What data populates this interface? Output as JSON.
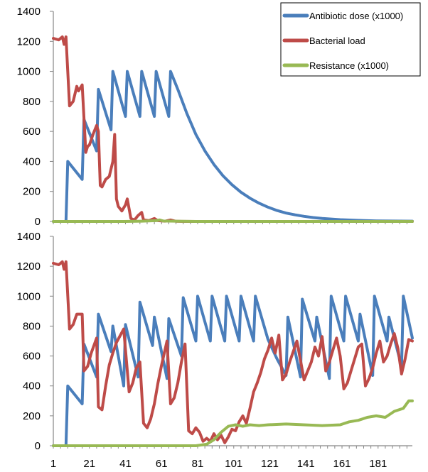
{
  "colors": {
    "antibiotic": "#4a7ebb",
    "bacteria": "#be4b48",
    "resistance": "#98b954",
    "axis": "#868686",
    "legend_border": "#000000"
  },
  "legend": {
    "position": "top-right",
    "entries": [
      "Antibiotic dose (x1000)",
      "Bacterial load",
      "Resistance (x1000)"
    ]
  },
  "chart_data": [
    {
      "type": "line",
      "title": "",
      "xlabel": "",
      "ylabel": "",
      "xlim": [
        1,
        200
      ],
      "ylim": [
        0,
        1400
      ],
      "yticks": [
        0,
        200,
        400,
        600,
        800,
        1000,
        1200,
        1400
      ],
      "xticks": [],
      "grid": false,
      "series": [
        {
          "name": "Antibiotic dose (x1000)",
          "color_key": "antibiotic",
          "points": [
            [
              1,
              0
            ],
            [
              8,
              0
            ],
            [
              9,
              400
            ],
            [
              17,
              280
            ],
            [
              18,
              680
            ],
            [
              25,
              470
            ],
            [
              26,
              880
            ],
            [
              33,
              610
            ],
            [
              34,
              1000
            ],
            [
              41,
              700
            ],
            [
              42,
              1000
            ],
            [
              49,
              700
            ],
            [
              50,
              1000
            ],
            [
              57,
              700
            ],
            [
              58,
              1000
            ],
            [
              65,
              700
            ],
            [
              66,
              1000
            ],
            [
              70,
              880
            ],
            [
              75,
              720
            ],
            [
              80,
              580
            ],
            [
              85,
              470
            ],
            [
              90,
              380
            ],
            [
              95,
              305
            ],
            [
              100,
              245
            ],
            [
              105,
              195
            ],
            [
              110,
              155
            ],
            [
              115,
              122
            ],
            [
              120,
              95
            ],
            [
              125,
              73
            ],
            [
              130,
              56
            ],
            [
              135,
              44
            ],
            [
              140,
              34
            ],
            [
              145,
              26
            ],
            [
              150,
              20
            ],
            [
              160,
              12
            ],
            [
              170,
              7
            ],
            [
              180,
              4
            ],
            [
              200,
              2
            ]
          ]
        },
        {
          "name": "Bacterial load",
          "color_key": "bacteria",
          "points": [
            [
              1,
              1220
            ],
            [
              4,
              1210
            ],
            [
              6,
              1230
            ],
            [
              7,
              1180
            ],
            [
              8,
              1230
            ],
            [
              10,
              770
            ],
            [
              12,
              800
            ],
            [
              14,
              900
            ],
            [
              15,
              870
            ],
            [
              17,
              910
            ],
            [
              19,
              460
            ],
            [
              20,
              500
            ],
            [
              21,
              510
            ],
            [
              23,
              580
            ],
            [
              25,
              640
            ],
            [
              26,
              600
            ],
            [
              27,
              240
            ],
            [
              28,
              230
            ],
            [
              30,
              280
            ],
            [
              32,
              300
            ],
            [
              34,
              400
            ],
            [
              35,
              580
            ],
            [
              36,
              150
            ],
            [
              37,
              100
            ],
            [
              39,
              70
            ],
            [
              41,
              110
            ],
            [
              42,
              150
            ],
            [
              44,
              20
            ],
            [
              46,
              10
            ],
            [
              48,
              40
            ],
            [
              50,
              60
            ],
            [
              51,
              10
            ],
            [
              54,
              5
            ],
            [
              57,
              20
            ],
            [
              59,
              5
            ],
            [
              63,
              2
            ],
            [
              66,
              10
            ],
            [
              69,
              1
            ],
            [
              80,
              0
            ],
            [
              120,
              0
            ],
            [
              200,
              0
            ]
          ]
        },
        {
          "name": "Resistance (x1000)",
          "color_key": "resistance",
          "points": [
            [
              1,
              0
            ],
            [
              40,
              0
            ],
            [
              50,
              2
            ],
            [
              58,
              5
            ],
            [
              60,
              10
            ],
            [
              62,
              3
            ],
            [
              80,
              0
            ],
            [
              200,
              0
            ]
          ]
        }
      ]
    },
    {
      "type": "line",
      "title": "",
      "xlabel": "",
      "ylabel": "",
      "xlim": [
        1,
        200
      ],
      "ylim": [
        0,
        1400
      ],
      "yticks": [
        0,
        200,
        400,
        600,
        800,
        1000,
        1200,
        1400
      ],
      "xticks": [
        1,
        21,
        41,
        61,
        81,
        101,
        121,
        141,
        161,
        181
      ],
      "grid": false,
      "series": [
        {
          "name": "Antibiotic dose (x1000)",
          "color_key": "antibiotic",
          "points": [
            [
              1,
              0
            ],
            [
              8,
              0
            ],
            [
              9,
              400
            ],
            [
              17,
              280
            ],
            [
              18,
              680
            ],
            [
              25,
              460
            ],
            [
              26,
              880
            ],
            [
              33,
              630
            ],
            [
              34,
              800
            ],
            [
              40,
              400
            ],
            [
              41,
              810
            ],
            [
              48,
              460
            ],
            [
              49,
              960
            ],
            [
              56,
              670
            ],
            [
              57,
              860
            ],
            [
              64,
              450
            ],
            [
              65,
              850
            ],
            [
              72,
              600
            ],
            [
              73,
              990
            ],
            [
              80,
              700
            ],
            [
              81,
              1000
            ],
            [
              88,
              700
            ],
            [
              89,
              1000
            ],
            [
              96,
              700
            ],
            [
              97,
              1000
            ],
            [
              104,
              700
            ],
            [
              105,
              1000
            ],
            [
              112,
              700
            ],
            [
              113,
              1000
            ],
            [
              120,
              710
            ],
            [
              125,
              580
            ],
            [
              130,
              470
            ],
            [
              131,
              860
            ],
            [
              138,
              460
            ],
            [
              139,
              980
            ],
            [
              146,
              700
            ],
            [
              147,
              860
            ],
            [
              154,
              450
            ],
            [
              155,
              1000
            ],
            [
              162,
              700
            ],
            [
              163,
              1000
            ],
            [
              170,
              700
            ],
            [
              171,
              880
            ],
            [
              178,
              470
            ],
            [
              179,
              1000
            ],
            [
              186,
              700
            ],
            [
              187,
              860
            ],
            [
              194,
              530
            ],
            [
              195,
              1000
            ],
            [
              200,
              720
            ]
          ]
        },
        {
          "name": "Bacterial load",
          "color_key": "bacteria",
          "points": [
            [
              1,
              1220
            ],
            [
              4,
              1210
            ],
            [
              6,
              1230
            ],
            [
              7,
              1180
            ],
            [
              8,
              1230
            ],
            [
              10,
              780
            ],
            [
              12,
              810
            ],
            [
              14,
              880
            ],
            [
              17,
              880
            ],
            [
              18,
              500
            ],
            [
              20,
              530
            ],
            [
              22,
              620
            ],
            [
              25,
              720
            ],
            [
              26,
              260
            ],
            [
              28,
              240
            ],
            [
              30,
              400
            ],
            [
              32,
              540
            ],
            [
              34,
              620
            ],
            [
              36,
              690
            ],
            [
              40,
              780
            ],
            [
              43,
              360
            ],
            [
              45,
              420
            ],
            [
              47,
              520
            ],
            [
              49,
              560
            ],
            [
              51,
              150
            ],
            [
              53,
              120
            ],
            [
              55,
              180
            ],
            [
              57,
              280
            ],
            [
              59,
              420
            ],
            [
              61,
              540
            ],
            [
              64,
              700
            ],
            [
              66,
              280
            ],
            [
              68,
              320
            ],
            [
              70,
              420
            ],
            [
              72,
              560
            ],
            [
              74,
              680
            ],
            [
              76,
              100
            ],
            [
              78,
              80
            ],
            [
              80,
              120
            ],
            [
              82,
              90
            ],
            [
              84,
              30
            ],
            [
              86,
              50
            ],
            [
              88,
              30
            ],
            [
              90,
              80
            ],
            [
              92,
              40
            ],
            [
              94,
              70
            ],
            [
              96,
              20
            ],
            [
              98,
              60
            ],
            [
              100,
              110
            ],
            [
              102,
              100
            ],
            [
              104,
              160
            ],
            [
              106,
              200
            ],
            [
              108,
              150
            ],
            [
              110,
              250
            ],
            [
              112,
              360
            ],
            [
              114,
              420
            ],
            [
              116,
              490
            ],
            [
              118,
              580
            ],
            [
              120,
              640
            ],
            [
              122,
              720
            ],
            [
              124,
              620
            ],
            [
              126,
              740
            ],
            [
              128,
              440
            ],
            [
              130,
              480
            ],
            [
              132,
              560
            ],
            [
              134,
              630
            ],
            [
              136,
              700
            ],
            [
              138,
              570
            ],
            [
              140,
              440
            ],
            [
              142,
              500
            ],
            [
              144,
              560
            ],
            [
              146,
              660
            ],
            [
              148,
              600
            ],
            [
              150,
              730
            ],
            [
              152,
              500
            ],
            [
              154,
              560
            ],
            [
              156,
              640
            ],
            [
              158,
              720
            ],
            [
              160,
              600
            ],
            [
              162,
              380
            ],
            [
              164,
              420
            ],
            [
              166,
              500
            ],
            [
              168,
              580
            ],
            [
              170,
              660
            ],
            [
              172,
              680
            ],
            [
              174,
              400
            ],
            [
              176,
              450
            ],
            [
              178,
              520
            ],
            [
              180,
              620
            ],
            [
              182,
              700
            ],
            [
              184,
              560
            ],
            [
              186,
              600
            ],
            [
              188,
              680
            ],
            [
              190,
              750
            ],
            [
              192,
              650
            ],
            [
              194,
              480
            ],
            [
              196,
              580
            ],
            [
              198,
              710
            ],
            [
              200,
              700
            ]
          ]
        },
        {
          "name": "Resistance (x1000)",
          "color_key": "resistance",
          "points": [
            [
              1,
              0
            ],
            [
              80,
              0
            ],
            [
              86,
              10
            ],
            [
              90,
              40
            ],
            [
              94,
              90
            ],
            [
              98,
              130
            ],
            [
              102,
              140
            ],
            [
              106,
              130
            ],
            [
              110,
              140
            ],
            [
              115,
              135
            ],
            [
              120,
              140
            ],
            [
              130,
              145
            ],
            [
              140,
              140
            ],
            [
              150,
              135
            ],
            [
              160,
              140
            ],
            [
              165,
              160
            ],
            [
              170,
              170
            ],
            [
              175,
              190
            ],
            [
              180,
              200
            ],
            [
              185,
              190
            ],
            [
              190,
              230
            ],
            [
              195,
              250
            ],
            [
              198,
              300
            ],
            [
              200,
              300
            ]
          ]
        }
      ]
    }
  ]
}
